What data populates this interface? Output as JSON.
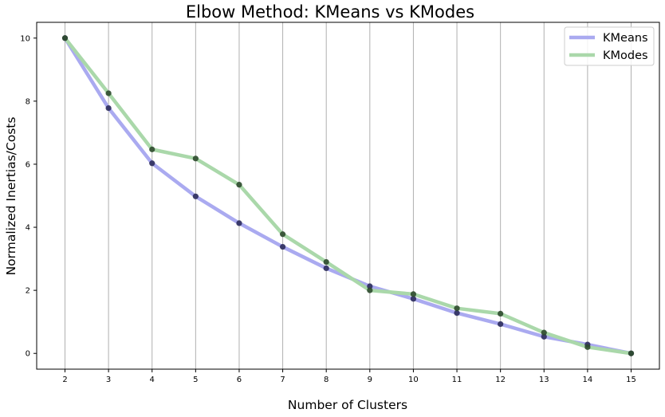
{
  "chart_data": {
    "type": "line",
    "title": "Elbow Method: KMeans vs KModes",
    "xlabel": "Number of Clusters",
    "ylabel": "Normalized Inertias/Costs",
    "x": [
      2,
      3,
      4,
      5,
      6,
      7,
      8,
      9,
      10,
      11,
      12,
      13,
      14,
      15
    ],
    "xlim": [
      1.35,
      15.65
    ],
    "ylim": [
      -0.5,
      10.5
    ],
    "xticks": [
      "2",
      "3",
      "4",
      "5",
      "6",
      "7",
      "8",
      "9",
      "10",
      "11",
      "12",
      "13",
      "14",
      "15"
    ],
    "yticks": [
      "0",
      "2",
      "4",
      "6",
      "8",
      "10"
    ],
    "grid": "vertical",
    "legend_position": "top-right",
    "series": [
      {
        "name": "KMeans",
        "color": "#aaaaf0",
        "marker_color": "#2c2c5c",
        "values": [
          10.0,
          7.78,
          6.03,
          4.98,
          4.13,
          3.38,
          2.7,
          2.13,
          1.73,
          1.28,
          0.93,
          0.53,
          0.28,
          0.0
        ]
      },
      {
        "name": "KModes",
        "color": "#aad8aa",
        "marker_color": "#2d4a2d",
        "values": [
          10.0,
          8.25,
          6.47,
          6.18,
          5.35,
          3.78,
          2.9,
          2.0,
          1.88,
          1.43,
          1.26,
          0.66,
          0.2,
          0.0
        ]
      }
    ]
  }
}
